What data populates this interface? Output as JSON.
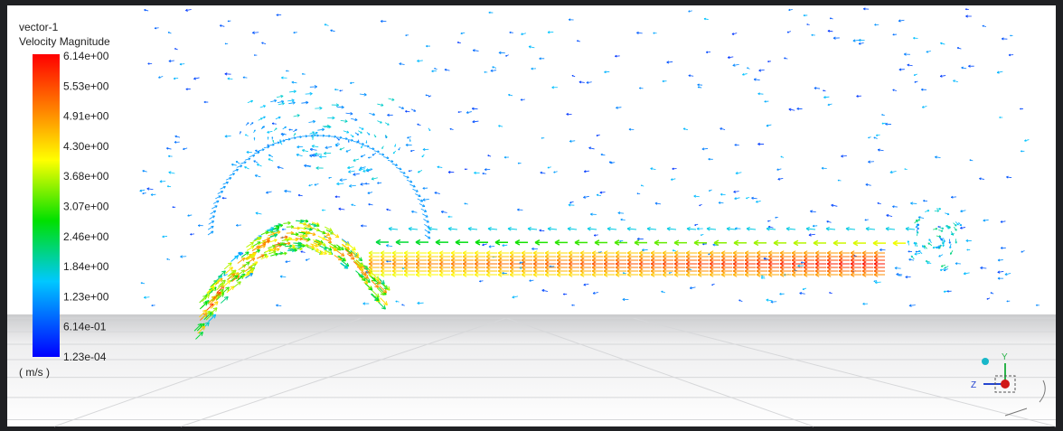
{
  "legend": {
    "name": "vector-1",
    "title": "Velocity Magnitude",
    "ticks": [
      "6.14e+00",
      "5.53e+00",
      "4.91e+00",
      "4.30e+00",
      "3.68e+00",
      "3.07e+00",
      "2.46e+00",
      "1.84e+00",
      "1.23e+00",
      "6.14e-01",
      "1.23e-04"
    ],
    "units": "( m/s )"
  },
  "triad": {
    "y": "Y",
    "z": "Z"
  }
}
